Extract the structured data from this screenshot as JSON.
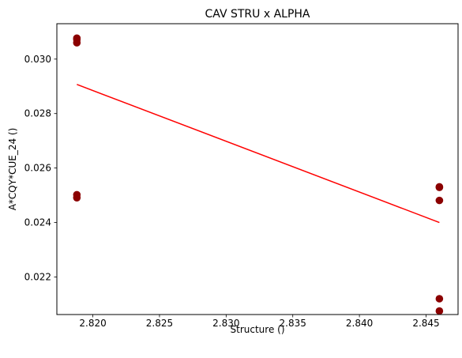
{
  "chart_data": {
    "type": "scatter",
    "title": "CAV STRU x ALPHA",
    "xlabel": "Structure ()",
    "ylabel": "A*CQY*CUE_24 ()",
    "xlim": [
      2.8173,
      2.8474
    ],
    "ylim": [
      0.02062,
      0.0313
    ],
    "x_ticks": [
      2.82,
      2.825,
      2.83,
      2.835,
      2.84,
      2.845
    ],
    "x_tick_labels": [
      "2.820",
      "2.825",
      "2.830",
      "2.835",
      "2.840",
      "2.845"
    ],
    "y_ticks": [
      0.022,
      0.024,
      0.026,
      0.028,
      0.03
    ],
    "y_tick_labels": [
      "0.022",
      "0.024",
      "0.026",
      "0.028",
      "0.030"
    ],
    "grid": false,
    "series": [
      {
        "kind": "scatter",
        "color": "#8b0000",
        "points": [
          {
            "x": 2.8188,
            "y": 0.03077
          },
          {
            "x": 2.8188,
            "y": 0.03072
          },
          {
            "x": 2.8188,
            "y": 0.0306
          },
          {
            "x": 2.8188,
            "y": 0.02502
          },
          {
            "x": 2.8188,
            "y": 0.02491
          },
          {
            "x": 2.846,
            "y": 0.02531
          },
          {
            "x": 2.846,
            "y": 0.02529
          },
          {
            "x": 2.846,
            "y": 0.02481
          },
          {
            "x": 2.846,
            "y": 0.0212
          },
          {
            "x": 2.846,
            "y": 0.02075
          }
        ]
      },
      {
        "kind": "line",
        "color": "#ff0000",
        "points": [
          {
            "x": 2.8188,
            "y": 0.02907
          },
          {
            "x": 2.846,
            "y": 0.024
          }
        ]
      }
    ]
  }
}
